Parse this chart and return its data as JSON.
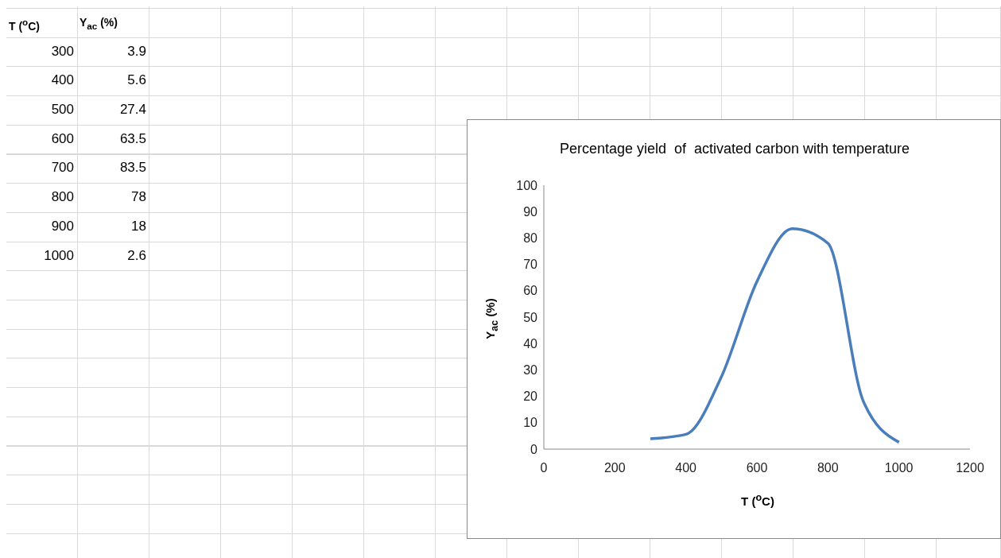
{
  "chart_data": {
    "type": "line",
    "title": "Percentage yield  of  activated carbon with temperature",
    "xlabel": "T ($^{o}$C)",
    "ylabel": "Y$_{ac}$ (%)",
    "x": [
      300,
      400,
      500,
      600,
      700,
      800,
      900,
      1000
    ],
    "series": [
      {
        "color": "#4a7ebb",
        "values": [
          3.9,
          5.6,
          27.4,
          63.5,
          83.5,
          78,
          18,
          2.6
        ]
      }
    ],
    "xlim": [
      0,
      1200
    ],
    "xticks": [
      0,
      200,
      400,
      600,
      800,
      1000,
      1200
    ],
    "ylim": [
      0,
      100
    ],
    "yticks": [
      0,
      10,
      20,
      30,
      40,
      50,
      60,
      70,
      80,
      90,
      100
    ],
    "grid": false,
    "legend": false,
    "marker": "none",
    "line_style": "solid",
    "annotations": [
      "T ($^{o}$C)",
      "Y$_{ac}$ (%)",
      "300",
      "3.9",
      "400",
      "5.6",
      "500",
      "27.4",
      "600",
      "63.5",
      "700",
      "83.5",
      "800",
      "78",
      "900",
      "18",
      "1000",
      "2.6"
    ]
  }
}
